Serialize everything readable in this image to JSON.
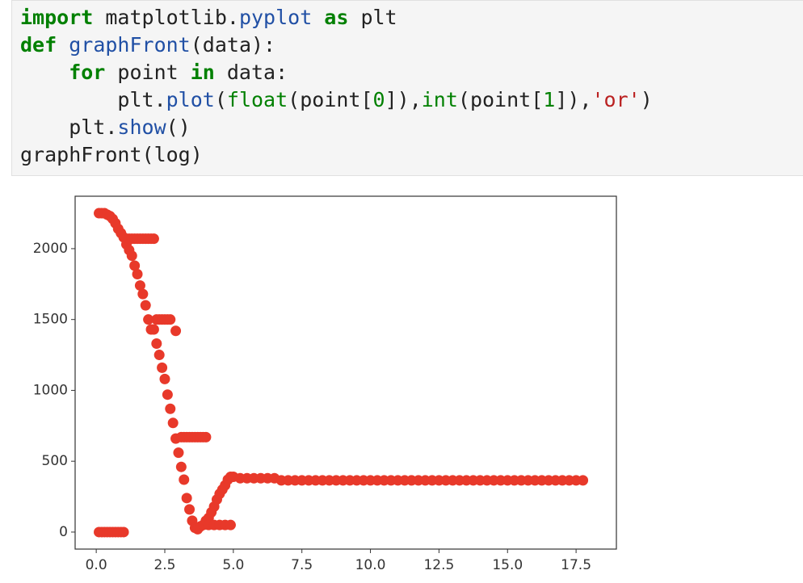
{
  "code": {
    "lines": [
      {
        "tokens": [
          {
            "text": "import",
            "color": "#008000",
            "weight": "bold"
          },
          {
            "text": " matplotlib.",
            "color": "#222222"
          },
          {
            "text": "pyplot ",
            "color": "#2150a5"
          },
          {
            "text": "as",
            "color": "#008000",
            "weight": "bold"
          },
          {
            "text": " plt",
            "color": "#222222"
          }
        ]
      },
      {
        "tokens": [
          {
            "text": "def ",
            "color": "#008000",
            "weight": "bold"
          },
          {
            "text": "graphFront",
            "color": "#2150a5"
          },
          {
            "text": "(data):",
            "color": "#222222"
          }
        ]
      },
      {
        "tokens": [
          {
            "text": "    for",
            "color": "#008000",
            "weight": "bold"
          },
          {
            "text": " point ",
            "color": "#222222"
          },
          {
            "text": "in",
            "color": "#008000",
            "weight": "bold"
          },
          {
            "text": " data:",
            "color": "#222222"
          }
        ]
      },
      {
        "tokens": [
          {
            "text": "        plt.",
            "color": "#222222"
          },
          {
            "text": "plot",
            "color": "#2150a5"
          },
          {
            "text": "(",
            "color": "#222222"
          },
          {
            "text": "float",
            "color": "#008000"
          },
          {
            "text": "(point[",
            "color": "#222222"
          },
          {
            "text": "0",
            "color": "#008000"
          },
          {
            "text": "]),",
            "color": "#222222"
          },
          {
            "text": "int",
            "color": "#008000"
          },
          {
            "text": "(point[",
            "color": "#222222"
          },
          {
            "text": "1",
            "color": "#008000"
          },
          {
            "text": "]),",
            "color": "#222222"
          },
          {
            "text": "'or'",
            "color": "#ba2121"
          },
          {
            "text": ")",
            "color": "#222222"
          }
        ]
      },
      {
        "tokens": [
          {
            "text": "    plt.",
            "color": "#222222"
          },
          {
            "text": "show",
            "color": "#2150a5"
          },
          {
            "text": "()",
            "color": "#222222"
          }
        ]
      },
      {
        "tokens": [
          {
            "text": "graphFront(log)",
            "color": "#222222"
          }
        ]
      }
    ]
  },
  "chart_data": {
    "type": "scatter",
    "color": "#e8392a",
    "xlim": [
      -0.77,
      18.97
    ],
    "ylim": [
      -120,
      2370
    ],
    "xticks": [
      {
        "value": 0,
        "label": "0.0"
      },
      {
        "value": 2.5,
        "label": "2.5"
      },
      {
        "value": 5,
        "label": "5.0"
      },
      {
        "value": 7.5,
        "label": "7.5"
      },
      {
        "value": 10,
        "label": "10.0"
      },
      {
        "value": 12.5,
        "label": "12.5"
      },
      {
        "value": 15,
        "label": "15.0"
      },
      {
        "value": 17.5,
        "label": "17.5"
      }
    ],
    "yticks": [
      0,
      500,
      1000,
      1500,
      2000
    ],
    "x": [
      0.1,
      0.2,
      0.3,
      0.4,
      0.5,
      0.6,
      0.7,
      0.8,
      0.9,
      1.0,
      0.1,
      0.2,
      0.3,
      0.4,
      0.5,
      0.6,
      0.7,
      0.8,
      0.9,
      1.0,
      1.1,
      1.2,
      1.3,
      1.4,
      1.5,
      1.6,
      1.7,
      1.8,
      1.9,
      2.0,
      2.1,
      2.2,
      2.3,
      2.4,
      2.5,
      2.6,
      2.7,
      2.8,
      2.9,
      3.0,
      3.1,
      3.2,
      3.3,
      3.4,
      3.5,
      3.6,
      3.7,
      1.2,
      1.3,
      1.4,
      1.5,
      1.6,
      1.7,
      1.8,
      1.9,
      2.0,
      2.1,
      2.2,
      2.3,
      2.4,
      2.5,
      2.6,
      2.7,
      2.9,
      3.1,
      3.2,
      3.3,
      3.4,
      3.5,
      3.6,
      3.7,
      3.8,
      3.9,
      4.0,
      3.8,
      3.9,
      4.0,
      4.1,
      4.2,
      4.3,
      4.4,
      4.5,
      4.6,
      4.7,
      4.8,
      4.9,
      5.0,
      4.1,
      4.3,
      4.5,
      4.7,
      4.9,
      5.25,
      5.5,
      5.75,
      6.0,
      6.25,
      6.5,
      6.75,
      7,
      7.25,
      7.5,
      7.75,
      8,
      8.25,
      8.5,
      8.75,
      9,
      9.25,
      9.5,
      9.75,
      10,
      10.25,
      10.5,
      10.75,
      11,
      11.25,
      11.5,
      11.75,
      12,
      12.25,
      12.5,
      12.75,
      13,
      13.25,
      13.5,
      13.75,
      14,
      14.25,
      14.5,
      14.75,
      15,
      15.25,
      15.5,
      15.75,
      16,
      16.25,
      16.5,
      16.75,
      17,
      17.25,
      17.5,
      17.75
    ],
    "values": [
      0,
      0,
      0,
      0,
      0,
      0,
      0,
      0,
      0,
      0,
      2250,
      2250,
      2250,
      2240,
      2230,
      2210,
      2180,
      2140,
      2110,
      2080,
      2030,
      1990,
      1950,
      1880,
      1820,
      1740,
      1680,
      1600,
      1500,
      1430,
      1430,
      1330,
      1250,
      1160,
      1080,
      970,
      870,
      770,
      660,
      560,
      460,
      370,
      240,
      160,
      80,
      30,
      20,
      2070,
      2070,
      2070,
      2070,
      2070,
      2070,
      2070,
      2070,
      2070,
      2070,
      1500,
      1500,
      1500,
      1500,
      1500,
      1500,
      1420,
      670,
      670,
      670,
      670,
      670,
      670,
      670,
      670,
      670,
      670,
      40,
      50,
      80,
      100,
      140,
      180,
      230,
      270,
      300,
      330,
      370,
      390,
      390,
      50,
      50,
      50,
      50,
      50,
      380,
      380,
      380,
      380,
      380,
      380,
      365,
      365,
      365,
      365,
      365,
      365,
      365,
      365,
      365,
      365,
      365,
      365,
      365,
      365,
      365,
      365,
      365,
      365,
      365,
      365,
      365,
      365,
      365,
      365,
      365,
      365,
      365,
      365,
      365,
      365,
      365,
      365,
      365,
      365,
      365,
      365,
      365,
      365,
      365,
      365,
      365,
      365,
      365,
      365,
      365
    ]
  }
}
